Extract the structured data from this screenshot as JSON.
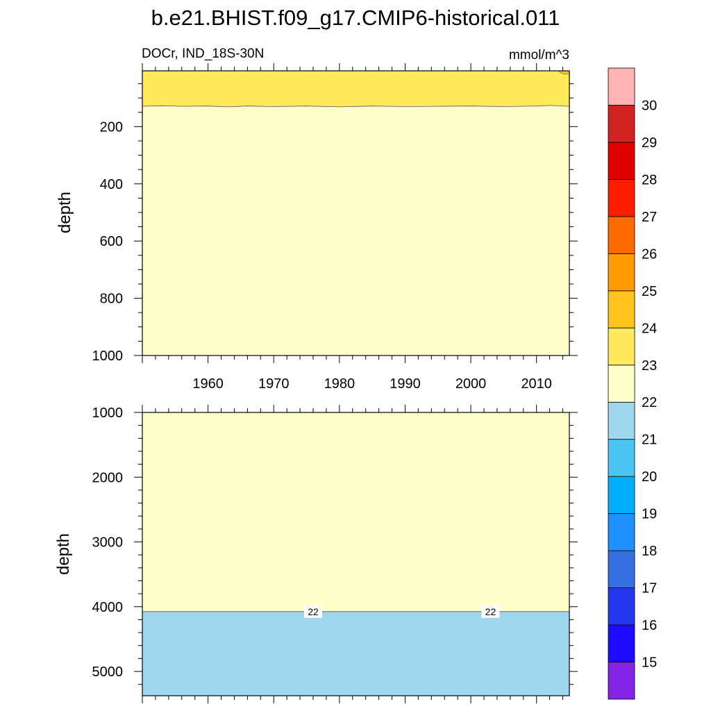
{
  "figure": {
    "title": "b.e21.BHIST.f09_g17.CMIP6-historical.011"
  },
  "chart_data": [
    {
      "type": "heatmap",
      "panel": "upper",
      "left_label": "DOCr, IND_18S-30N",
      "right_label": "mmol/m^3",
      "xlabel": "",
      "ylabel": "depth",
      "xlim": [
        1950,
        2015
      ],
      "ylim": [
        1000,
        5
      ],
      "y_reversed": true,
      "x_ticks": [
        1960,
        1970,
        1980,
        1990,
        2000,
        2010
      ],
      "x_tick_labels": [
        "1960",
        "1970",
        "1980",
        "1990",
        "2000",
        "2010"
      ],
      "y_ticks": [
        200,
        400,
        600,
        800,
        1000
      ],
      "y_tick_labels": [
        "200",
        "400",
        "600",
        "800",
        "1000"
      ],
      "regions": [
        {
          "level_range": "22-23",
          "depth_top": 5,
          "depth_bottom_profile": [
            {
              "x": 1950,
              "depth": 129
            },
            {
              "x": 1953,
              "depth": 127
            },
            {
              "x": 1956,
              "depth": 129
            },
            {
              "x": 1960,
              "depth": 128
            },
            {
              "x": 1963,
              "depth": 131
            },
            {
              "x": 1966,
              "depth": 128
            },
            {
              "x": 1970,
              "depth": 130
            },
            {
              "x": 1975,
              "depth": 128
            },
            {
              "x": 1980,
              "depth": 131
            },
            {
              "x": 1985,
              "depth": 128
            },
            {
              "x": 1990,
              "depth": 130
            },
            {
              "x": 1995,
              "depth": 129
            },
            {
              "x": 2000,
              "depth": 128
            },
            {
              "x": 2005,
              "depth": 130
            },
            {
              "x": 2010,
              "depth": 128
            },
            {
              "x": 2012,
              "depth": 126
            },
            {
              "x": 2015,
              "depth": 129
            }
          ]
        },
        {
          "level_range": "22-23 (below)",
          "note": ""
        },
        {
          "level_range": "23-24",
          "x_range": [
            2013.3,
            2015
          ],
          "depth_range": [
            5,
            15
          ]
        }
      ]
    },
    {
      "type": "heatmap",
      "panel": "lower",
      "xlabel": "",
      "ylabel": "depth",
      "xlim": [
        1950,
        2015
      ],
      "ylim": [
        5375,
        1000
      ],
      "y_reversed": true,
      "x_ticks": [
        1960,
        1970,
        1980,
        1990,
        2000,
        2010
      ],
      "y_ticks": [
        1000,
        2000,
        3000,
        4000,
        5000
      ],
      "y_tick_labels": [
        "1000",
        "2000",
        "3000",
        "4000",
        "5000"
      ],
      "contour_22_depth": 4075,
      "contour_labels": [
        {
          "text": "22",
          "x": 1976
        },
        {
          "text": "22",
          "x": 2003
        }
      ]
    }
  ],
  "colorbar": {
    "tick_labels": [
      "15",
      "16",
      "17",
      "18",
      "19",
      "20",
      "21",
      "22",
      "23",
      "24",
      "25",
      "26",
      "27",
      "28",
      "29",
      "30"
    ],
    "colors": [
      "#8424e8",
      "#1e0aff",
      "#2338ed",
      "#3670e0",
      "#1e90ff",
      "#00b0ff",
      "#4cc5f5",
      "#a0d6ee",
      "#ffffcc",
      "#ffeb5a",
      "#ffc31e",
      "#ff9b00",
      "#ff6a00",
      "#ff1e00",
      "#e10000",
      "#d22323",
      "#ffb4b4"
    ],
    "level_colors": {
      "22-23": "#ffffcc",
      "23-24": "#ffeb5a",
      "24-25": "#ffc31e",
      "21-22": "#a0d6ee"
    }
  }
}
